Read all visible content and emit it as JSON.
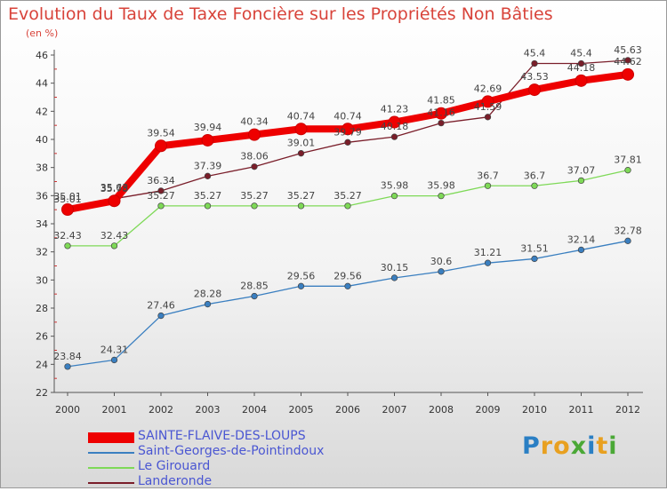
{
  "chart_data": {
    "type": "line",
    "title": "Evolution du Taux de Taxe Foncière sur les Propriétés Non Bâties",
    "unit_label": "(en %)",
    "x": [
      "2000",
      "2001",
      "2002",
      "2003",
      "2004",
      "2005",
      "2006",
      "2007",
      "2008",
      "2009",
      "2010",
      "2011",
      "2012"
    ],
    "ylim": [
      22,
      46
    ],
    "yticks": [
      22,
      24,
      26,
      28,
      30,
      32,
      34,
      36,
      38,
      40,
      42,
      44,
      46
    ],
    "grid": false,
    "legend_position": "bottom-left",
    "series": [
      {
        "name": "SAINTE-FLAIVE-DES-LOUPS",
        "color": "#ee0000",
        "values": [
          35.01,
          35.63,
          39.54,
          39.94,
          40.34,
          40.74,
          40.74,
          41.23,
          41.85,
          42.69,
          43.53,
          44.18,
          44.62
        ],
        "labels": [
          "35.01",
          "35.63",
          "39.54",
          "39.94",
          "40.34",
          "40.74",
          "40.74",
          "41.23",
          "41.85",
          "42.69",
          "43.53",
          "44.18",
          "44.62"
        ]
      },
      {
        "name": "Saint-Georges-de-Pointindoux",
        "color": "#3a7fc0",
        "values": [
          23.84,
          24.31,
          27.46,
          28.28,
          28.85,
          29.56,
          29.56,
          30.15,
          30.6,
          31.21,
          31.51,
          32.14,
          32.78
        ],
        "labels": [
          "23.84",
          "24.31",
          "27.46",
          "28.28",
          "28.85",
          "29.56",
          "29.56",
          "30.15",
          "30.6",
          "31.21",
          "31.51",
          "32.14",
          "32.78"
        ]
      },
      {
        "name": "Le Girouard",
        "color": "#7ed957",
        "values": [
          32.43,
          32.43,
          35.27,
          35.27,
          35.27,
          35.27,
          35.27,
          35.98,
          35.98,
          36.7,
          36.7,
          37.07,
          37.81
        ],
        "labels": [
          "32.43",
          "32.43",
          "35.27",
          "35.27",
          "35.27",
          "35.27",
          "35.27",
          "35.98",
          "35.98",
          "36.7",
          "36.7",
          "37.07",
          "37.81"
        ]
      },
      {
        "name": "Landeronde",
        "color": "#7a1e2a",
        "values": [
          35.01,
          35.78,
          36.34,
          37.39,
          38.06,
          39.01,
          39.79,
          40.18,
          41.16,
          41.59,
          45.4,
          45.4,
          45.63
        ],
        "labels": [
          "35.01",
          "35.78",
          "36.34",
          "37.39",
          "38.06",
          "39.01",
          "39.79",
          "40.18",
          "41.16",
          "41.59",
          "45.4",
          "45.4",
          "45.63"
        ]
      }
    ]
  },
  "logo": {
    "text": "Proxiti"
  }
}
